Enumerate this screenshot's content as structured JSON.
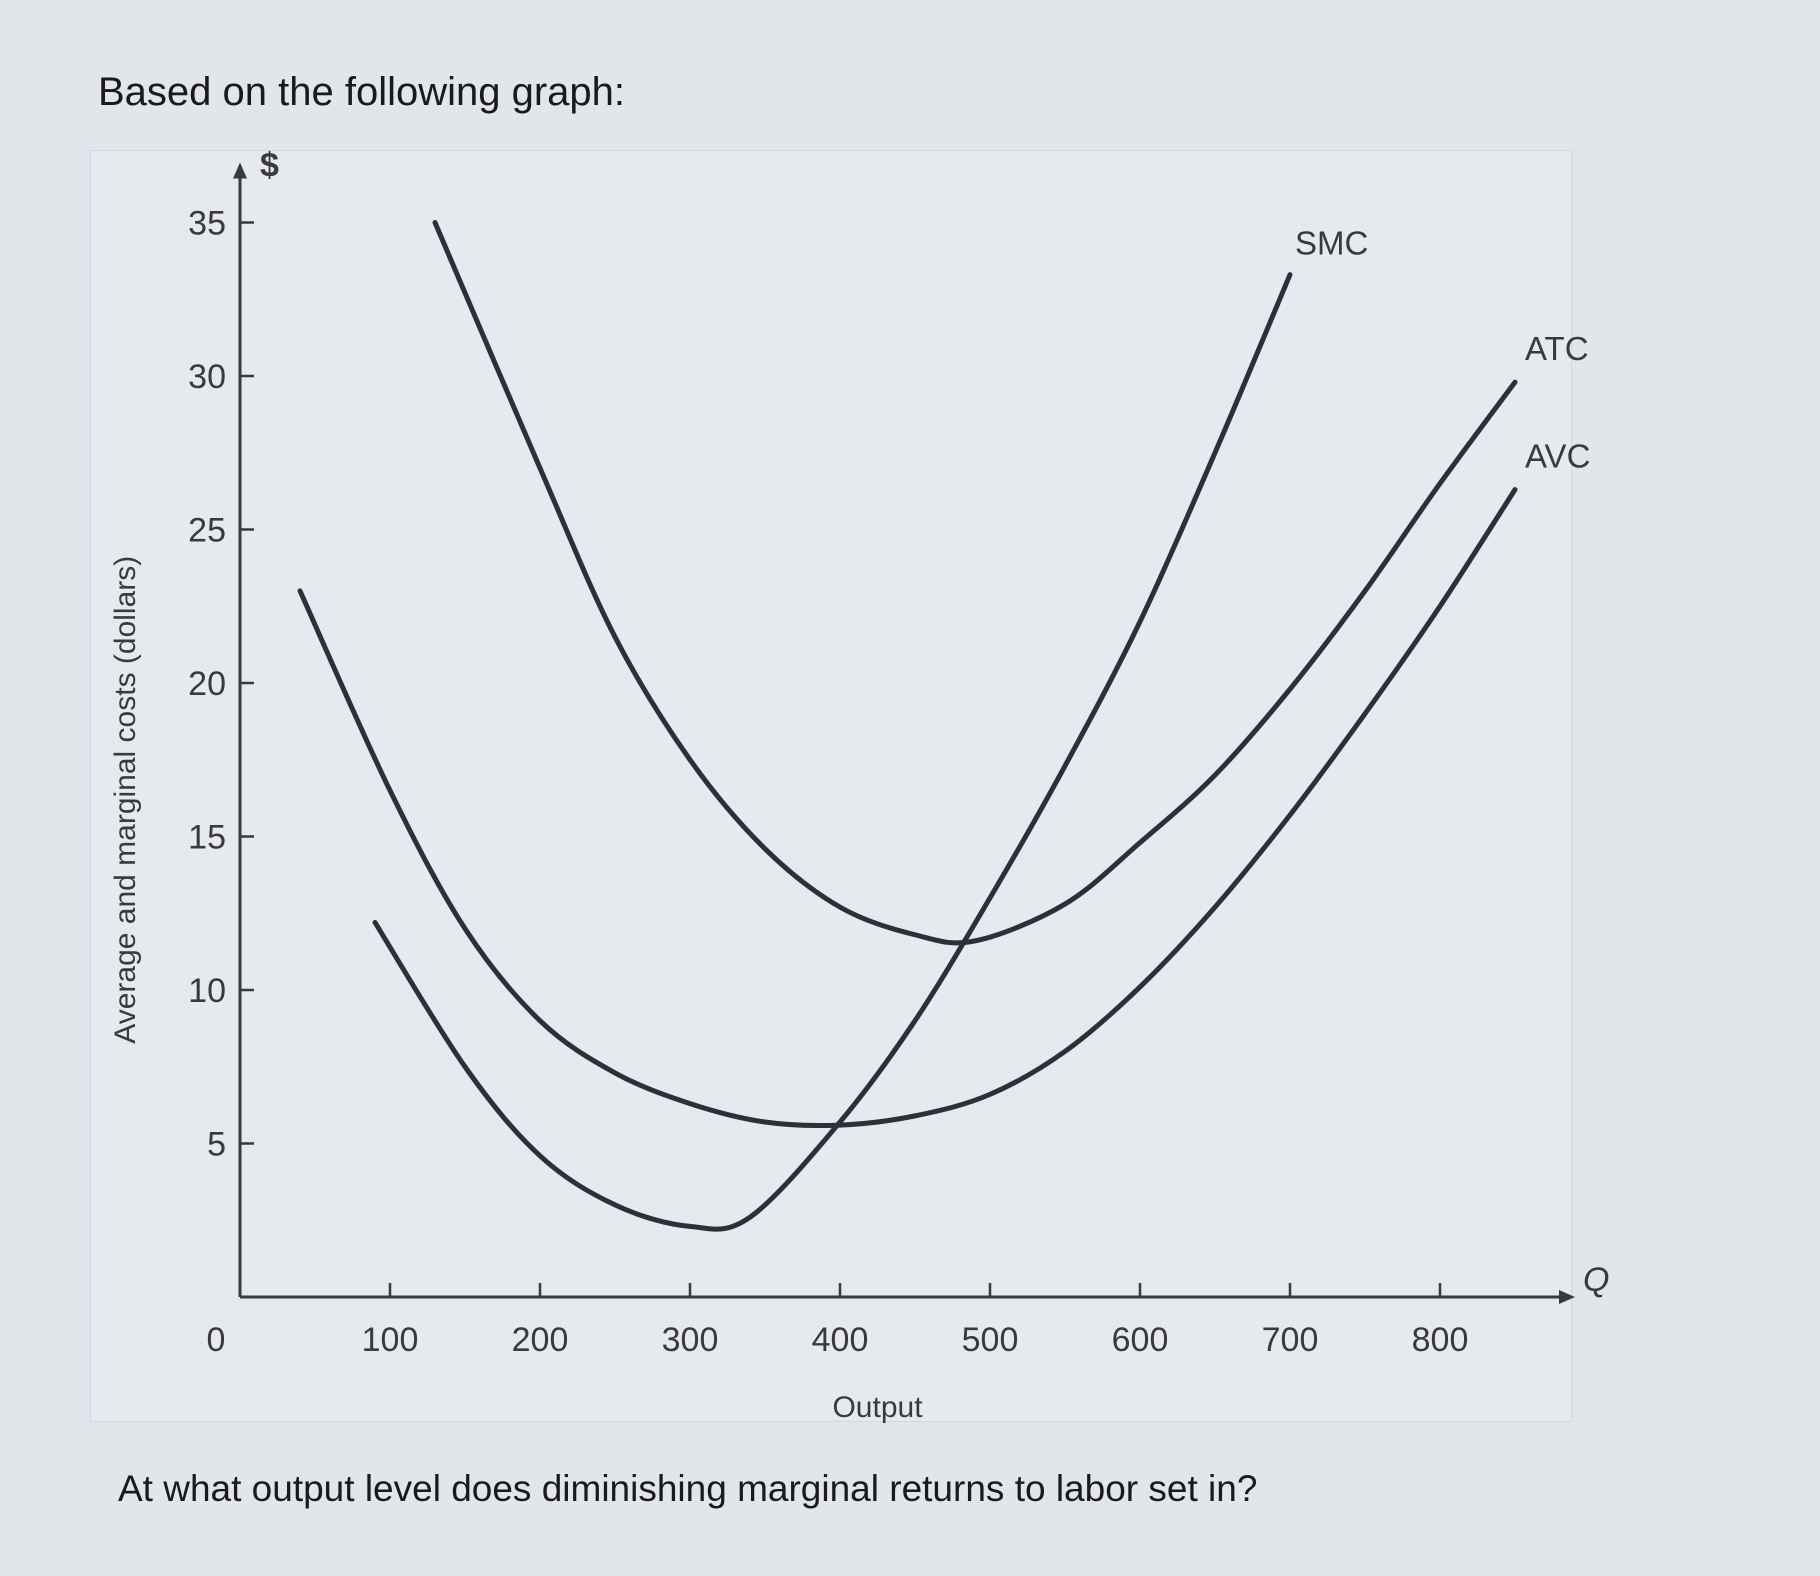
{
  "prompt": "Based on the following graph:",
  "question": "At what output level does diminishing marginal returns to labor set in?",
  "chart_data": {
    "type": "line",
    "xlabel": "Output",
    "ylabel": "Average and marginal costs (dollars)",
    "x_axis_symbol": "Q",
    "y_axis_symbol": "$",
    "xlim": [
      0,
      850
    ],
    "ylim": [
      0,
      35
    ],
    "x_ticks": [
      0,
      100,
      200,
      300,
      400,
      500,
      600,
      700,
      800
    ],
    "y_ticks": [
      5,
      10,
      15,
      20,
      25,
      30,
      35
    ],
    "grid": false,
    "series": [
      {
        "name": "SMC",
        "points": [
          [
            90,
            12.2
          ],
          [
            150,
            7.5
          ],
          [
            200,
            4.6
          ],
          [
            250,
            3.0
          ],
          [
            300,
            2.3
          ],
          [
            340,
            2.6
          ],
          [
            400,
            5.7
          ],
          [
            450,
            9.0
          ],
          [
            500,
            13.0
          ],
          [
            550,
            17.3
          ],
          [
            600,
            22.0
          ],
          [
            650,
            27.5
          ],
          [
            700,
            33.3
          ]
        ]
      },
      {
        "name": "ATC",
        "points": [
          [
            130,
            35.0
          ],
          [
            200,
            27.0
          ],
          [
            250,
            21.5
          ],
          [
            300,
            17.5
          ],
          [
            350,
            14.6
          ],
          [
            400,
            12.7
          ],
          [
            450,
            11.8
          ],
          [
            490,
            11.6
          ],
          [
            550,
            12.8
          ],
          [
            600,
            14.8
          ],
          [
            650,
            17.0
          ],
          [
            700,
            19.8
          ],
          [
            750,
            23.0
          ],
          [
            800,
            26.5
          ],
          [
            850,
            29.8
          ]
        ]
      },
      {
        "name": "AVC",
        "points": [
          [
            40,
            23.0
          ],
          [
            100,
            16.5
          ],
          [
            150,
            12.0
          ],
          [
            200,
            9.0
          ],
          [
            250,
            7.3
          ],
          [
            300,
            6.3
          ],
          [
            350,
            5.7
          ],
          [
            400,
            5.6
          ],
          [
            450,
            5.9
          ],
          [
            500,
            6.6
          ],
          [
            550,
            8.0
          ],
          [
            600,
            10.1
          ],
          [
            650,
            12.7
          ],
          [
            700,
            15.7
          ],
          [
            750,
            19.0
          ],
          [
            800,
            22.5
          ],
          [
            850,
            26.3
          ]
        ]
      }
    ]
  }
}
